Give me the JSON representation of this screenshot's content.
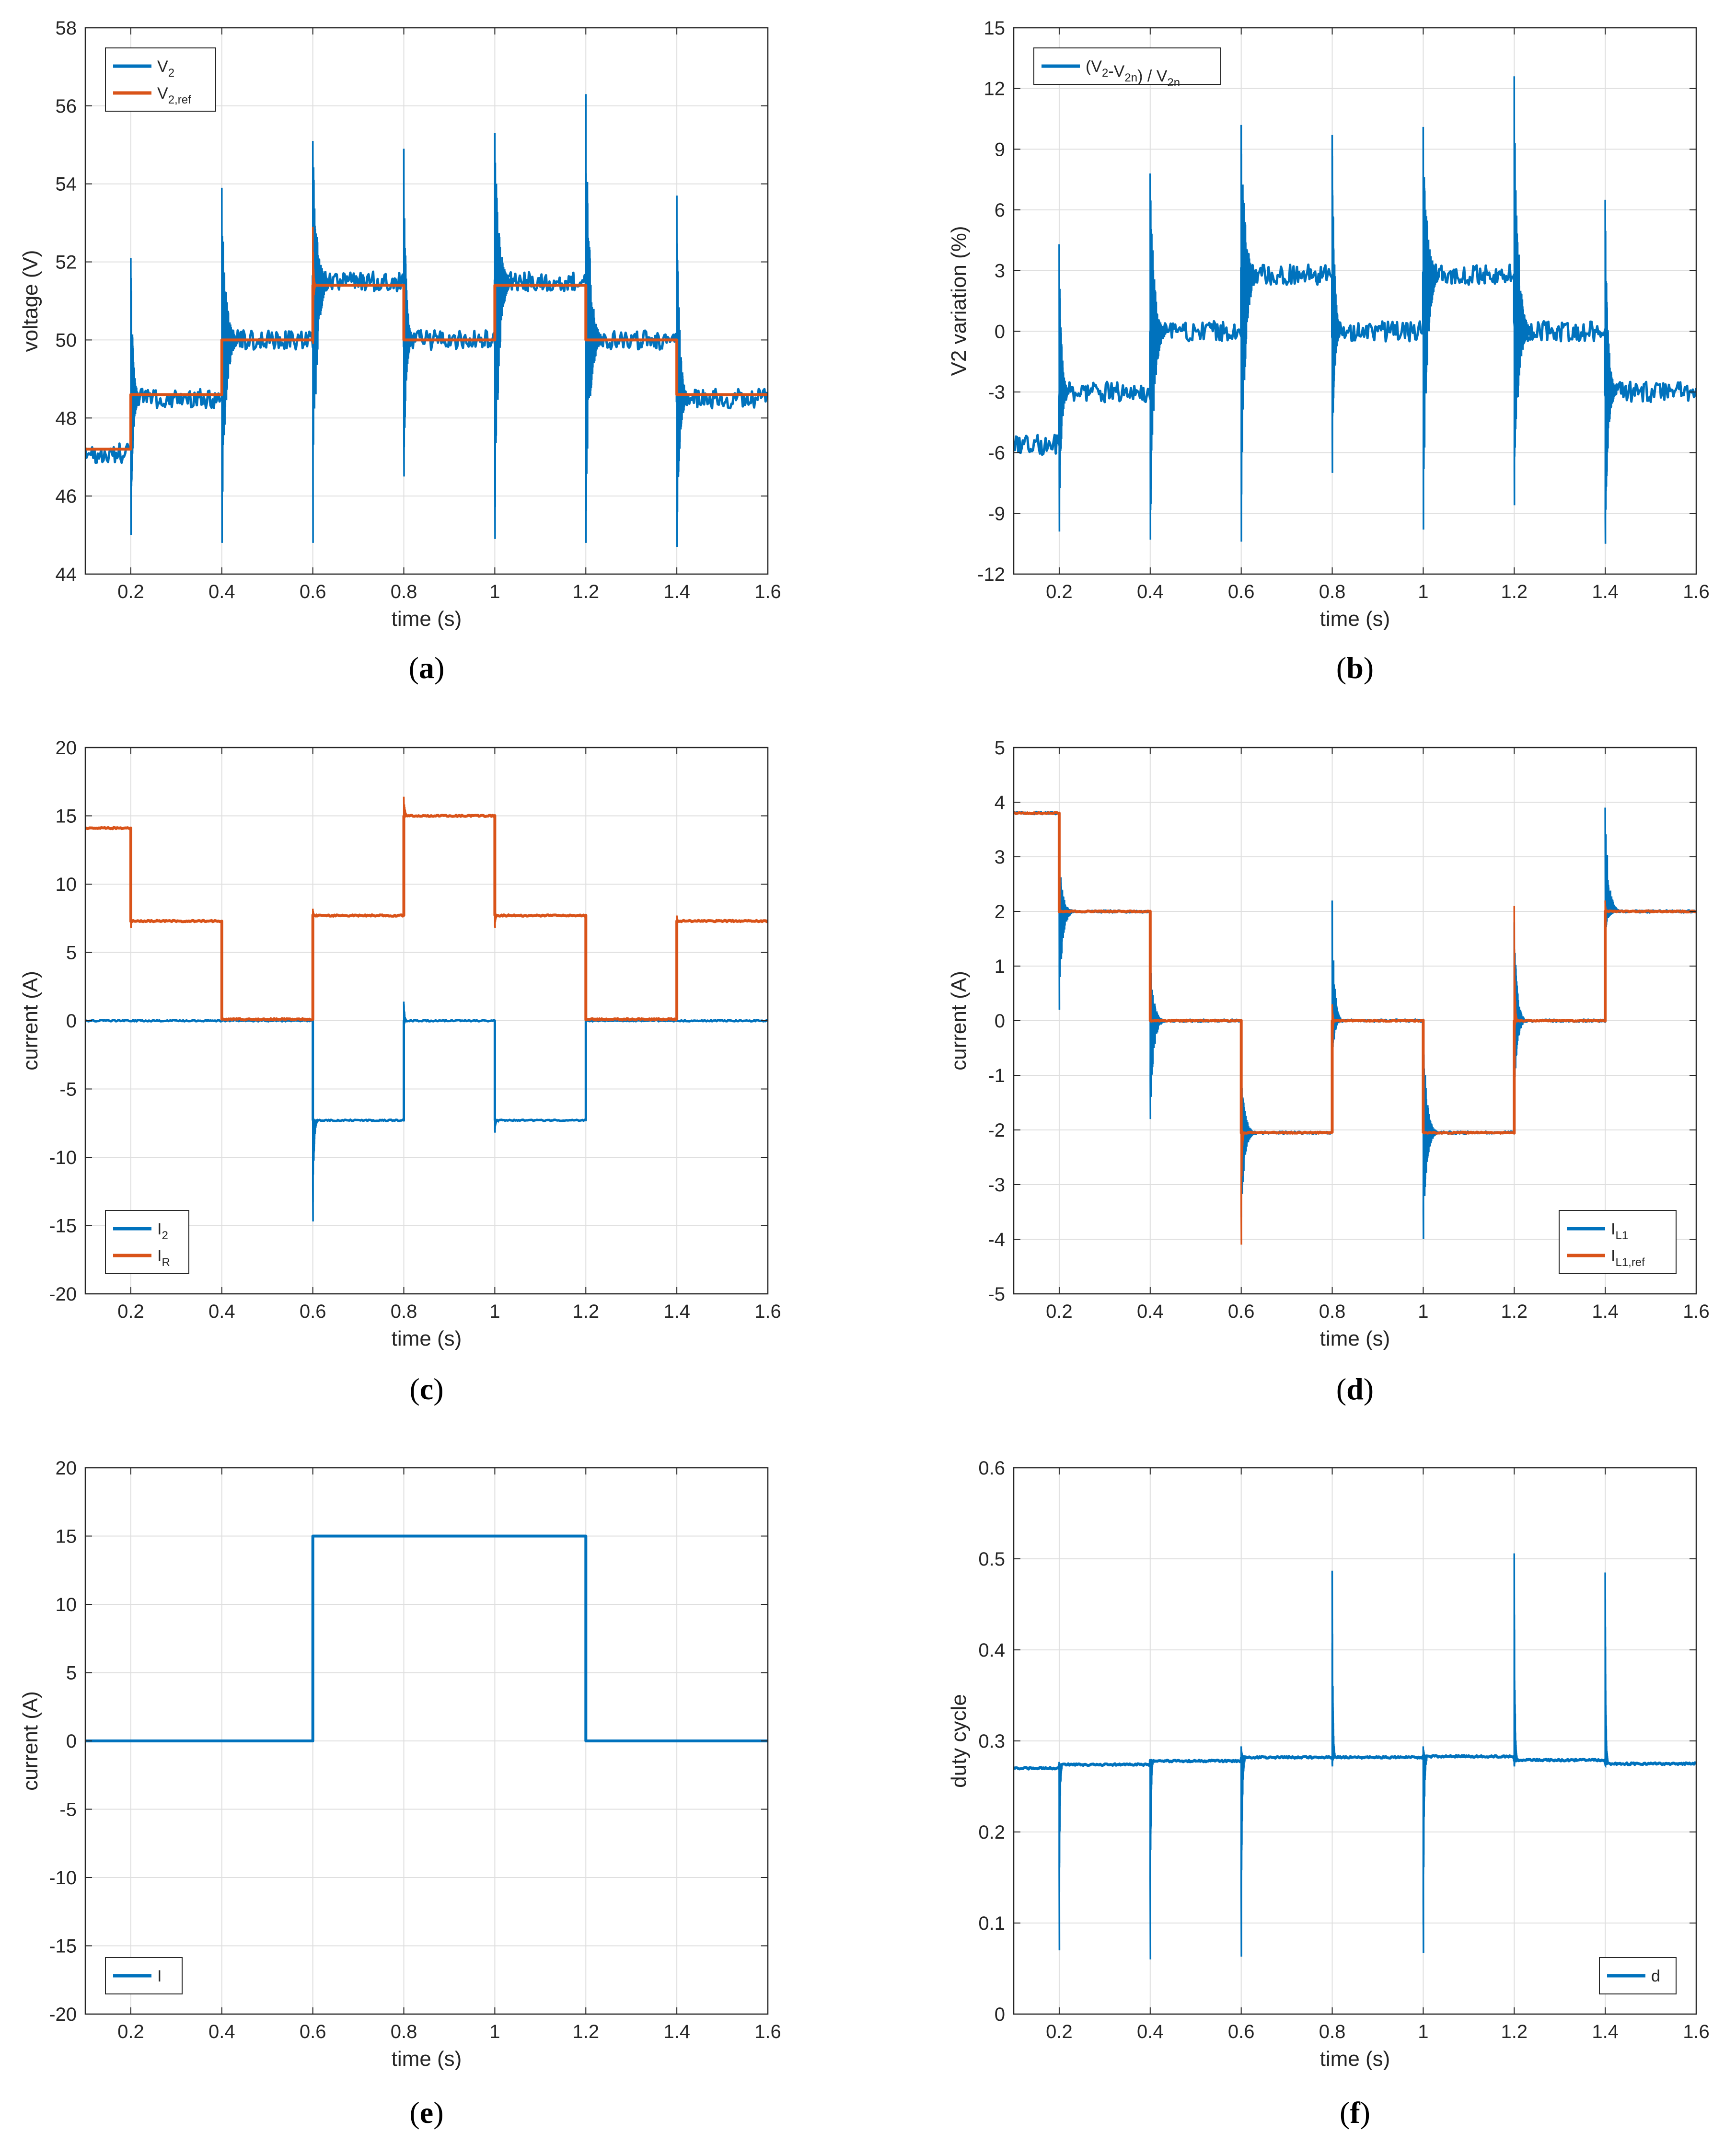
{
  "colors": {
    "series1": "#0072BD",
    "series2": "#D95319",
    "grid": "#dfdfdf",
    "axis": "#262626"
  },
  "chart_data": [
    {
      "id": "a",
      "type": "line",
      "caption": "a",
      "xlabel": "time (s)",
      "ylabel": "voltage (V)",
      "xlim": [
        0.1,
        1.6
      ],
      "ylim": [
        44,
        58
      ],
      "xticks": [
        0.2,
        0.4,
        0.6,
        0.8,
        1,
        1.2,
        1.4,
        1.6
      ],
      "yticks": [
        44,
        46,
        48,
        50,
        52,
        54,
        56,
        58
      ],
      "grid": true,
      "legend_position": "top-left",
      "legend": [
        {
          "name": "V",
          "sub": "2"
        },
        {
          "name": "V",
          "sub": "2,ref"
        }
      ],
      "series": [
        {
          "name": "V_2",
          "color": "series1",
          "width": 5,
          "noise": 0.25,
          "steady": [
            [
              0.1,
              1.4,
              47.1
            ],
            [
              0.2,
              2.2,
              48.5
            ],
            [
              0.4,
              3,
              50.0
            ],
            [
              0.6,
              4,
              51.5
            ],
            [
              0.8,
              5,
              50.0
            ],
            [
              1.0,
              6,
              51.5
            ],
            [
              1.2,
              7,
              50.0
            ],
            [
              1.4,
              8,
              48.5
            ]
          ],
          "spikes": [
            [
              0.2,
              52.1,
              45.0,
              0.02
            ],
            [
              0.4,
              53.9,
              44.8,
              0.035
            ],
            [
              0.6,
              55.1,
              44.8,
              0.035
            ],
            [
              0.8,
              54.9,
              46.5,
              0.02
            ],
            [
              1.0,
              55.3,
              44.9,
              0.035
            ],
            [
              1.2,
              56.3,
              44.8,
              0.035
            ],
            [
              1.4,
              53.7,
              44.7,
              0.025
            ]
          ]
        },
        {
          "name": "V_2,ref",
          "color": "series2",
          "width": 6,
          "noise": 0,
          "steady": [
            [
              0.1,
              1.6,
              47.2
            ],
            [
              0.2,
              2.6,
              48.6
            ],
            [
              0.4,
              3.6,
              50.0
            ],
            [
              0.6,
              4.6,
              51.4
            ],
            [
              0.8,
              5.6,
              50.0
            ],
            [
              1.0,
              6.6,
              51.4
            ],
            [
              1.2,
              7.6,
              50.0
            ],
            [
              1.4,
              8.6,
              48.6
            ]
          ],
          "spikes": [
            [
              0.6,
              52.9,
              49.9,
              0.006
            ]
          ]
        }
      ]
    },
    {
      "id": "b",
      "type": "line",
      "caption": "b",
      "xlabel": "time (s)",
      "ylabel": "V2 variation (%)",
      "xlim": [
        0.1,
        1.6
      ],
      "ylim": [
        -12,
        15
      ],
      "xticks": [
        0.2,
        0.4,
        0.6,
        0.8,
        1,
        1.2,
        1.4,
        1.6
      ],
      "yticks": [
        -12,
        -9,
        -6,
        -3,
        0,
        3,
        6,
        9,
        12,
        15
      ],
      "grid": true,
      "legend_position": "top-left",
      "legend": [
        {
          "name": "(V",
          "sub": "2",
          "mid": "-V",
          "sub2": "2n",
          "tail": ") / V",
          "sub3": "2n"
        }
      ],
      "series": [
        {
          "name": "(V2-V2n)/V2n",
          "color": "series1",
          "width": 5,
          "noise": 0.5,
          "steady": [
            [
              0.1,
              1.1,
              -5.6
            ],
            [
              0.2,
              2.1,
              -3.0
            ],
            [
              0.4,
              3.1,
              0.0
            ],
            [
              0.6,
              4.1,
              2.8
            ],
            [
              0.8,
              5.1,
              0.0
            ],
            [
              1.0,
              6.1,
              2.8
            ],
            [
              1.2,
              7.1,
              0.0
            ],
            [
              1.4,
              8.1,
              -3.0
            ]
          ],
          "spikes": [
            [
              0.2,
              4.3,
              -9.9,
              0.02
            ],
            [
              0.4,
              7.8,
              -10.3,
              0.035
            ],
            [
              0.6,
              10.2,
              -10.4,
              0.035
            ],
            [
              0.8,
              9.7,
              -7.0,
              0.02
            ],
            [
              1.0,
              10.1,
              -9.8,
              0.035
            ],
            [
              1.2,
              12.6,
              -8.6,
              0.035
            ],
            [
              1.4,
              6.5,
              -10.5,
              0.025
            ]
          ]
        }
      ]
    },
    {
      "id": "c",
      "type": "line",
      "caption": "c",
      "xlabel": "time (s)",
      "ylabel": "current (A)",
      "xlim": [
        0.1,
        1.6
      ],
      "ylim": [
        -20,
        20
      ],
      "xticks": [
        0.2,
        0.4,
        0.6,
        0.8,
        1,
        1.2,
        1.4,
        1.6
      ],
      "yticks": [
        -20,
        -15,
        -10,
        -5,
        0,
        5,
        10,
        15,
        20
      ],
      "grid": true,
      "legend_position": "bottom-left",
      "legend": [
        {
          "name": "I",
          "sub": "2"
        },
        {
          "name": "I",
          "sub": "R"
        }
      ],
      "series": [
        {
          "name": "I_2",
          "color": "series1",
          "width": 5,
          "noise": 0.05,
          "steady": [
            [
              0.1,
              1.2,
              0.0
            ],
            [
              0.2,
              2.2,
              0.0
            ],
            [
              0.4,
              3.2,
              0.0
            ],
            [
              0.6,
              4.2,
              -7.3
            ],
            [
              0.8,
              5.2,
              0.0
            ],
            [
              1.0,
              6.2,
              -7.3
            ],
            [
              1.2,
              7.2,
              0.0
            ],
            [
              1.4,
              8.2,
              0.0
            ]
          ],
          "spikes": [
            [
              0.6,
              -7.0,
              -14.7,
              0.01
            ],
            [
              0.8,
              1.4,
              -0.5,
              0.008
            ],
            [
              1.0,
              -7.0,
              -8.2,
              0.008
            ]
          ]
        },
        {
          "name": "I_R",
          "color": "series2",
          "width": 6,
          "noise": 0.05,
          "steady": [
            [
              0.1,
              1.3,
              14.1
            ],
            [
              0.2,
              2.3,
              7.3
            ],
            [
              0.4,
              3.3,
              0.1
            ],
            [
              0.6,
              4.3,
              7.7
            ],
            [
              0.8,
              5.3,
              15.0
            ],
            [
              1.0,
              6.3,
              7.7
            ],
            [
              1.2,
              7.3,
              0.1
            ],
            [
              1.4,
              8.3,
              7.3
            ]
          ],
          "spikes": [
            [
              0.2,
              7.4,
              6.8,
              0.006
            ],
            [
              0.6,
              8.2,
              7.6,
              0.008
            ],
            [
              0.8,
              16.4,
              14.9,
              0.01
            ],
            [
              1.0,
              8.1,
              6.8,
              0.008
            ],
            [
              1.4,
              7.7,
              7.2,
              0.006
            ]
          ]
        }
      ]
    },
    {
      "id": "d",
      "type": "line",
      "caption": "d",
      "xlabel": "time (s)",
      "ylabel": "current (A)",
      "xlim": [
        0.1,
        1.6
      ],
      "ylim": [
        -5,
        5
      ],
      "xticks": [
        0.2,
        0.4,
        0.6,
        0.8,
        1,
        1.2,
        1.4,
        1.6
      ],
      "yticks": [
        -5,
        -4,
        -3,
        -2,
        -1,
        0,
        1,
        2,
        3,
        4,
        5
      ],
      "grid": true,
      "legend_position": "bottom-right",
      "legend": [
        {
          "name": "I",
          "sub": "L1"
        },
        {
          "name": "I",
          "sub": "L1,ref"
        }
      ],
      "series": [
        {
          "name": "I_L1",
          "color": "series1",
          "width": 5,
          "noise": 0.02,
          "steady": [
            [
              0.1,
              1.4,
              3.8
            ],
            [
              0.2,
              2.4,
              2.0
            ],
            [
              0.4,
              3.4,
              0.0
            ],
            [
              0.6,
              4.4,
              -2.05
            ],
            [
              0.8,
              5.4,
              0.0
            ],
            [
              1.0,
              6.4,
              -2.05
            ],
            [
              1.2,
              7.4,
              0.0
            ],
            [
              1.4,
              8.4,
              2.0
            ]
          ],
          "spikes": [
            [
              0.2,
              3.0,
              0.2,
              0.03
            ],
            [
              0.4,
              1.2,
              -1.8,
              0.03
            ],
            [
              0.6,
              -0.8,
              -3.6,
              0.03
            ],
            [
              0.8,
              2.2,
              -0.8,
              0.02
            ],
            [
              1.0,
              0.0,
              -4.0,
              0.03
            ],
            [
              1.2,
              1.8,
              -1.5,
              0.025
            ],
            [
              1.4,
              3.9,
              1.6,
              0.03
            ]
          ]
        },
        {
          "name": "I_L1,ref",
          "color": "series2",
          "width": 6,
          "noise": 0.01,
          "steady": [
            [
              0.1,
              1.5,
              3.8
            ],
            [
              0.2,
              2.5,
              2.0
            ],
            [
              0.4,
              3.5,
              0.0
            ],
            [
              0.6,
              4.5,
              -2.05
            ],
            [
              0.8,
              5.5,
              0.0
            ],
            [
              1.0,
              6.5,
              -2.05
            ],
            [
              1.2,
              7.5,
              0.0
            ],
            [
              1.4,
              8.5,
              2.0
            ]
          ],
          "spikes": [
            [
              0.6,
              -1.9,
              -4.1,
              0.006
            ],
            [
              0.8,
              0.3,
              -0.5,
              0.006
            ],
            [
              1.2,
              2.1,
              -0.3,
              0.006
            ],
            [
              1.4,
              2.2,
              1.9,
              0.004
            ]
          ]
        }
      ]
    },
    {
      "id": "e",
      "type": "line",
      "caption": "e",
      "xlabel": "time (s)",
      "ylabel": "current (A)",
      "xlim": [
        0.1,
        1.6
      ],
      "ylim": [
        -20,
        20
      ],
      "xticks": [
        0.2,
        0.4,
        0.6,
        0.8,
        1,
        1.2,
        1.4,
        1.6
      ],
      "yticks": [
        -20,
        -15,
        -10,
        -5,
        0,
        5,
        10,
        15,
        20
      ],
      "grid": true,
      "legend_position": "bottom-left",
      "legend": [
        {
          "name": "I"
        }
      ],
      "series": [
        {
          "name": "I",
          "color": "series1",
          "width": 6,
          "noise": 0,
          "steady": [
            [
              0.1,
              1.7,
              0.0
            ],
            [
              0.6,
              2.7,
              15.0
            ],
            [
              1.2,
              3.7,
              0.0
            ]
          ],
          "spikes": []
        }
      ]
    },
    {
      "id": "f",
      "type": "line",
      "caption": "f",
      "xlabel": "time (s)",
      "ylabel": "duty cycle",
      "xlim": [
        0.1,
        1.6
      ],
      "ylim": [
        0,
        0.6
      ],
      "xticks": [
        0.2,
        0.4,
        0.6,
        0.8,
        1,
        1.2,
        1.4,
        1.6
      ],
      "yticks": [
        0,
        0.1,
        0.2,
        0.3,
        0.4,
        0.5,
        0.6
      ],
      "grid": true,
      "legend_position": "bottom-right",
      "legend": [
        {
          "name": "d"
        }
      ],
      "series": [
        {
          "name": "d",
          "color": "series1",
          "width": 6,
          "noise": 0.001,
          "steady": [
            [
              0.1,
              1.8,
              0.27
            ],
            [
              0.2,
              2.8,
              0.274
            ],
            [
              0.4,
              3.8,
              0.278
            ],
            [
              0.6,
              4.8,
              0.282
            ],
            [
              0.8,
              5.8,
              0.282
            ],
            [
              1.0,
              6.8,
              0.283
            ],
            [
              1.2,
              7.8,
              0.279
            ],
            [
              1.4,
              8.8,
              0.275
            ]
          ],
          "spikes": [
            [
              0.2,
              0.277,
              0.07,
              0.006
            ],
            [
              0.4,
              0.28,
              0.06,
              0.006
            ],
            [
              0.6,
              0.294,
              0.063,
              0.008
            ],
            [
              0.8,
              0.487,
              0.272,
              0.006
            ],
            [
              1.0,
              0.294,
              0.067,
              0.008
            ],
            [
              1.2,
              0.506,
              0.272,
              0.006
            ],
            [
              1.4,
              0.485,
              0.273,
              0.006
            ]
          ]
        }
      ]
    }
  ]
}
